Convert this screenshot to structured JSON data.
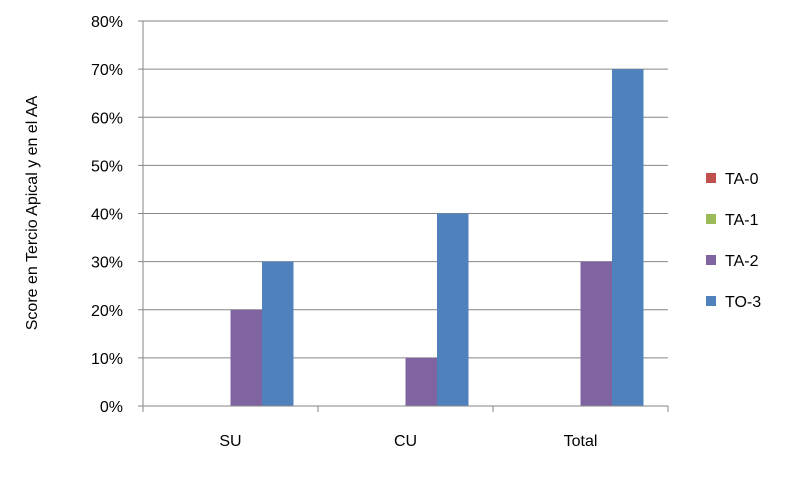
{
  "chart_data": {
    "type": "bar",
    "categories": [
      "SU",
      "CU",
      "Total"
    ],
    "series": [
      {
        "name": "TA-0",
        "values": [
          0,
          0,
          0
        ],
        "color": "#C0504D"
      },
      {
        "name": "TA-1",
        "values": [
          0,
          0,
          0
        ],
        "color": "#9BBB59"
      },
      {
        "name": "TA-2",
        "values": [
          20,
          10,
          30
        ],
        "color": "#8064A2"
      },
      {
        "name": "TO-3",
        "values": [
          30,
          40,
          70
        ],
        "color": "#4F81BD"
      }
    ],
    "ylabel": "Score en Tercio Apical y en el AA",
    "ylim": [
      0,
      80
    ],
    "yticks": [
      "0%",
      "10%",
      "20%",
      "30%",
      "40%",
      "50%",
      "60%",
      "70%",
      "80%"
    ],
    "grid": true,
    "legend": "right"
  }
}
